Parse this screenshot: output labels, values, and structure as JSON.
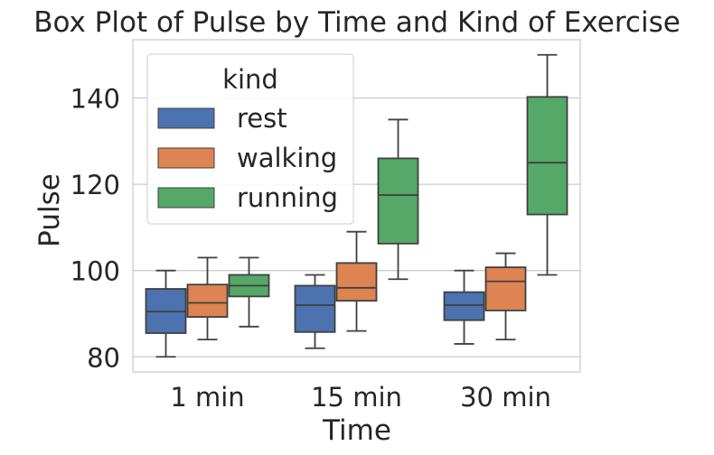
{
  "chart_data": {
    "type": "box",
    "title": "Box Plot of Pulse by Time and Kind of Exercise",
    "xlabel": "Time",
    "ylabel": "Pulse",
    "categories": [
      "1 min",
      "15 min",
      "30 min"
    ],
    "ylim": [
      76.5,
      153.5
    ],
    "yticks": [
      80,
      100,
      120,
      140
    ],
    "grid": true,
    "legend": {
      "title": "kind",
      "placement": "top-left"
    },
    "series": [
      {
        "name": "rest",
        "color": "#4c72b0",
        "boxes": [
          {
            "min": 80,
            "q1": 85.5,
            "median": 90.5,
            "q3": 95.75,
            "max": 100
          },
          {
            "min": 82,
            "q1": 85.75,
            "median": 92,
            "q3": 96.5,
            "max": 99
          },
          {
            "min": 83,
            "q1": 88.5,
            "median": 92,
            "q3": 95,
            "max": 100
          }
        ]
      },
      {
        "name": "walking",
        "color": "#dd8452",
        "boxes": [
          {
            "min": 84,
            "q1": 89.25,
            "median": 92.5,
            "q3": 96.75,
            "max": 103
          },
          {
            "min": 86,
            "q1": 93,
            "median": 96,
            "q3": 101.75,
            "max": 109
          },
          {
            "min": 84,
            "q1": 90.75,
            "median": 97.5,
            "q3": 100.75,
            "max": 104
          }
        ]
      },
      {
        "name": "running",
        "color": "#55a868",
        "boxes": [
          {
            "min": 87,
            "q1": 94,
            "median": 96.5,
            "q3": 99,
            "max": 103
          },
          {
            "min": 98,
            "q1": 106.25,
            "median": 117.5,
            "q3": 126,
            "max": 135
          },
          {
            "min": 99,
            "q1": 113,
            "median": 125,
            "q3": 140.25,
            "max": 150
          }
        ]
      }
    ]
  }
}
